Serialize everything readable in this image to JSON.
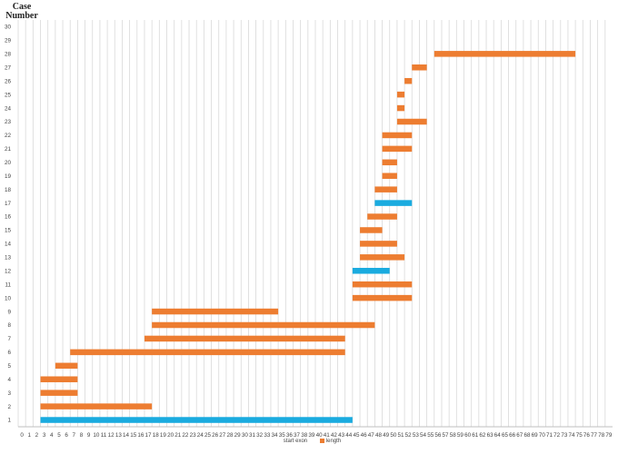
{
  "chart_data": {
    "type": "bar",
    "orientation": "horizontal",
    "stacked": true,
    "y_axis_title": "Case Number",
    "x_ticks": [
      0,
      1,
      2,
      3,
      4,
      5,
      6,
      7,
      8,
      9,
      10,
      11,
      12,
      13,
      14,
      15,
      16,
      17,
      18,
      19,
      20,
      21,
      22,
      23,
      24,
      25,
      26,
      27,
      28,
      29,
      30,
      31,
      32,
      33,
      34,
      35,
      36,
      37,
      38,
      39,
      40,
      41,
      42,
      43,
      44,
      45,
      46,
      47,
      48,
      49,
      50,
      51,
      52,
      53,
      54,
      55,
      56,
      57,
      58,
      59,
      60,
      61,
      62,
      63,
      64,
      65,
      66,
      67,
      68,
      69,
      70,
      71,
      72,
      73,
      74,
      75,
      76,
      77,
      78,
      79
    ],
    "xlim": [
      0,
      80
    ],
    "y_ticks": [
      1,
      2,
      3,
      4,
      5,
      6,
      7,
      8,
      9,
      10,
      11,
      12,
      13,
      14,
      15,
      16,
      17,
      18,
      19,
      20,
      21,
      22,
      23,
      24,
      25,
      26,
      27,
      28,
      29,
      30
    ],
    "grid": "vertical",
    "legend_placement": "bottom",
    "legend": [
      {
        "name": "start exon",
        "color": "none"
      },
      {
        "name": "length",
        "color": "#ED7D31"
      }
    ],
    "colors": {
      "default": "#ED7D31",
      "highlight": "#1AABDF"
    },
    "bars": [
      {
        "case": 1,
        "start": 3,
        "length": 42,
        "color": "highlight"
      },
      {
        "case": 2,
        "start": 3,
        "length": 15
      },
      {
        "case": 3,
        "start": 3,
        "length": 5
      },
      {
        "case": 4,
        "start": 3,
        "length": 5
      },
      {
        "case": 5,
        "start": 5,
        "length": 3
      },
      {
        "case": 6,
        "start": 7,
        "length": 37
      },
      {
        "case": 7,
        "start": 17,
        "length": 27
      },
      {
        "case": 8,
        "start": 18,
        "length": 30
      },
      {
        "case": 9,
        "start": 18,
        "length": 17
      },
      {
        "case": 10,
        "start": 45,
        "length": 8
      },
      {
        "case": 11,
        "start": 45,
        "length": 8
      },
      {
        "case": 12,
        "start": 45,
        "length": 5,
        "color": "highlight"
      },
      {
        "case": 13,
        "start": 46,
        "length": 6
      },
      {
        "case": 14,
        "start": 46,
        "length": 5
      },
      {
        "case": 15,
        "start": 46,
        "length": 3
      },
      {
        "case": 16,
        "start": 47,
        "length": 4
      },
      {
        "case": 17,
        "start": 48,
        "length": 5,
        "color": "highlight"
      },
      {
        "case": 18,
        "start": 48,
        "length": 3
      },
      {
        "case": 19,
        "start": 49,
        "length": 2
      },
      {
        "case": 20,
        "start": 49,
        "length": 2
      },
      {
        "case": 21,
        "start": 49,
        "length": 4
      },
      {
        "case": 22,
        "start": 49,
        "length": 4
      },
      {
        "case": 23,
        "start": 51,
        "length": 4
      },
      {
        "case": 24,
        "start": 51,
        "length": 1
      },
      {
        "case": 25,
        "start": 51,
        "length": 1
      },
      {
        "case": 26,
        "start": 52,
        "length": 1
      },
      {
        "case": 27,
        "start": 53,
        "length": 2
      },
      {
        "case": 28,
        "start": 56,
        "length": 19
      }
    ]
  }
}
